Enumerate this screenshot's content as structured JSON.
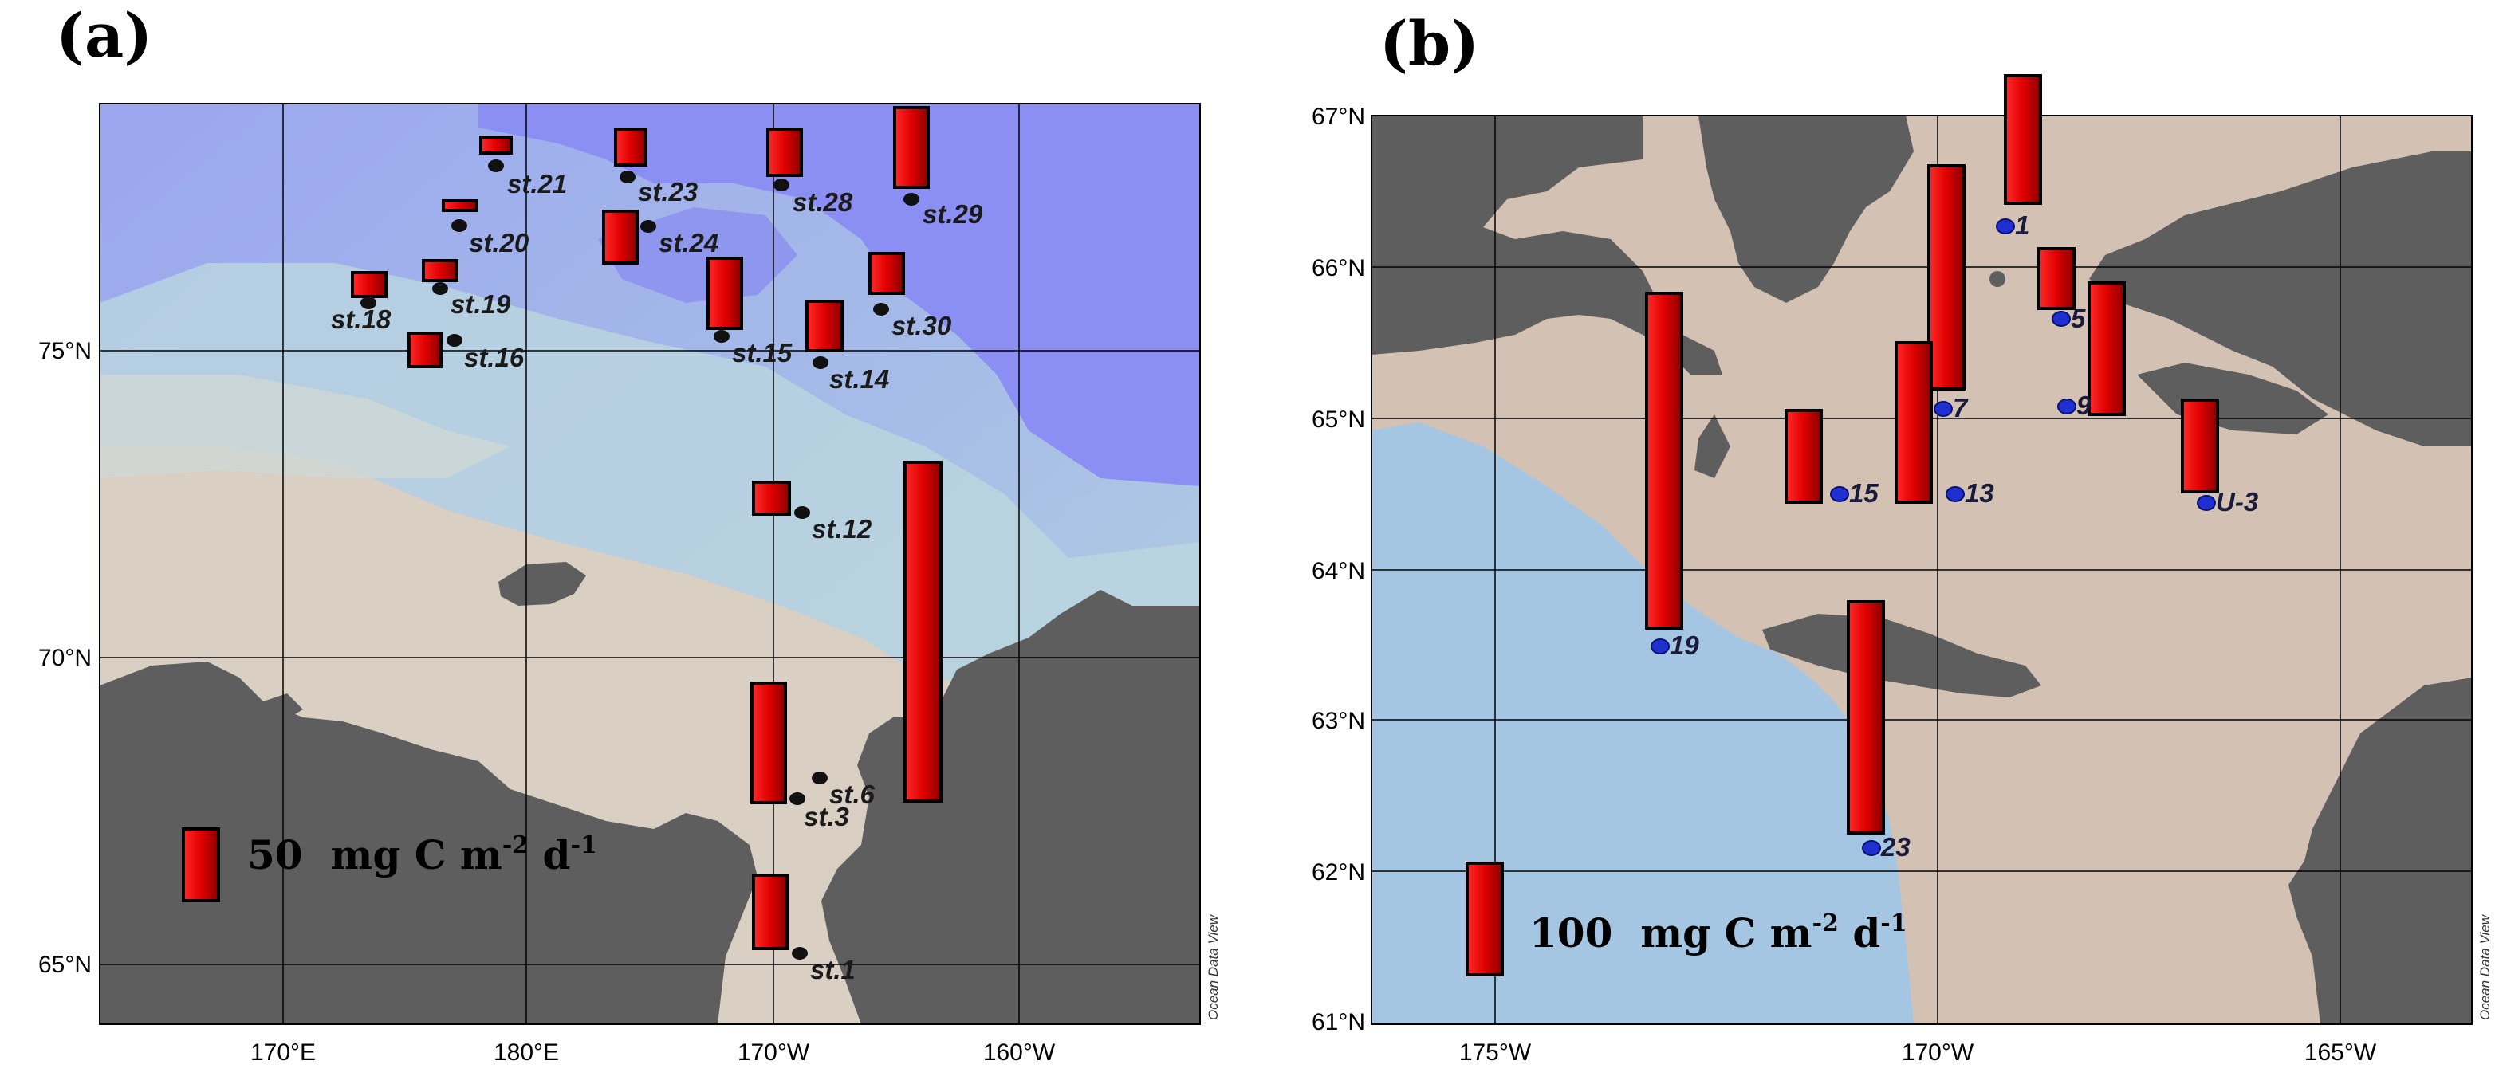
{
  "panels": [
    {
      "label": "(a)",
      "credit": "Ocean Data View",
      "lat_ticks": [
        "75°N",
        "70°N",
        "65°N"
      ],
      "lon_ticks": [
        "170°E",
        "180°E",
        "170°W",
        "160°W"
      ],
      "legend": {
        "value": "50",
        "unit_main": "mg C m",
        "unit_sup1": "-2",
        "unit_mid": " d",
        "unit_sup2": "-1"
      },
      "stations": [
        "st.21",
        "st.23",
        "st.28",
        "st.29",
        "st.20",
        "st.24",
        "st.19",
        "st.18",
        "st.16",
        "st.15",
        "st.30",
        "st.14",
        "st.12",
        "st.6",
        "st.3",
        "st.1"
      ]
    },
    {
      "label": "(b)",
      "credit": "Ocean Data View",
      "lat_ticks": [
        "67°N",
        "66°N",
        "65°N",
        "64°N",
        "63°N",
        "62°N",
        "61°N"
      ],
      "lon_ticks": [
        "175°W",
        "170°W",
        "165°W"
      ],
      "legend": {
        "value": "100",
        "unit_main": "mg C m",
        "unit_sup1": "-2",
        "unit_mid": " d",
        "unit_sup2": "-1"
      },
      "stations": [
        "1",
        "5",
        "9",
        "7",
        "15",
        "13",
        "U-3",
        "19",
        "23"
      ]
    }
  ],
  "colors": {
    "bar_red": "#e00000",
    "land": "#5e5e5e",
    "shelf": "#d3c2b4",
    "deep_blue": "#8b8ef0",
    "station_dot_a": "#111111",
    "station_dot_b": "#1f2fd0",
    "water_b": "#a5c6e2"
  }
}
